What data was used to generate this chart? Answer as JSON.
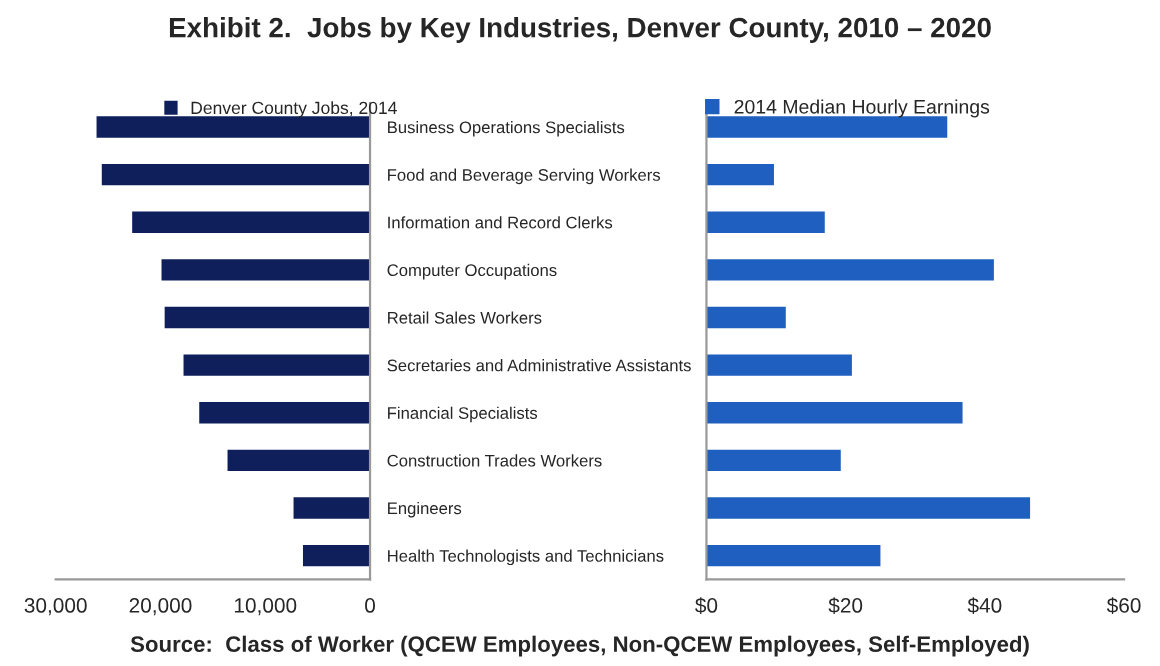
{
  "chart_data": [
    {
      "type": "bar",
      "orientation": "horizontal",
      "title": "Exhibit 2.  Jobs by Key Industries, Denver County, 2010 – 2020",
      "annotations": [
        "Source:  Class of Worker (QCEW Employees, Non-QCEW Employees, Self-Employed)"
      ],
      "categories": [
        "Business Operations Specialists",
        "Food and Beverage Serving Workers",
        "Information and Record Clerks",
        "Computer Occupations",
        "Retail Sales Workers",
        "Secretaries and Administrative Assistants",
        "Financial Specialists",
        "Construction Trades Workers",
        "Engineers",
        "Health Technologists and Technicians"
      ],
      "series": [
        {
          "name": "Denver County Jobs, 2014",
          "color": "#0f1f5c",
          "values": [
            26100,
            25600,
            22700,
            19900,
            19600,
            17800,
            16300,
            13600,
            7300,
            6400
          ]
        }
      ],
      "xlim": [
        30000,
        0
      ],
      "xticks": [
        {
          "value": 30000,
          "label": "30,000"
        },
        {
          "value": 20000,
          "label": "20,000"
        },
        {
          "value": 10000,
          "label": "10,000"
        },
        0
      ],
      "legend": "top",
      "grid": false
    },
    {
      "type": "bar",
      "orientation": "horizontal",
      "categories": [
        null,
        null,
        null,
        null,
        null,
        null,
        null,
        null,
        null,
        null
      ],
      "series": [
        {
          "name": "2014 Median Hourly Earnings",
          "color": "#1f5fbf",
          "values": [
            34.6,
            9.7,
            17.0,
            41.3,
            11.4,
            20.9,
            36.8,
            19.3,
            46.5,
            25.0
          ]
        }
      ],
      "xlim": [
        0,
        60
      ],
      "xticks": [
        {
          "value": 0,
          "label": "$0"
        },
        {
          "value": 20,
          "label": "$20"
        },
        {
          "value": 40,
          "label": "$40"
        },
        {
          "value": 60,
          "label": "$60"
        }
      ],
      "legend": "top",
      "grid": false,
      "tick_labels": "x"
    }
  ]
}
